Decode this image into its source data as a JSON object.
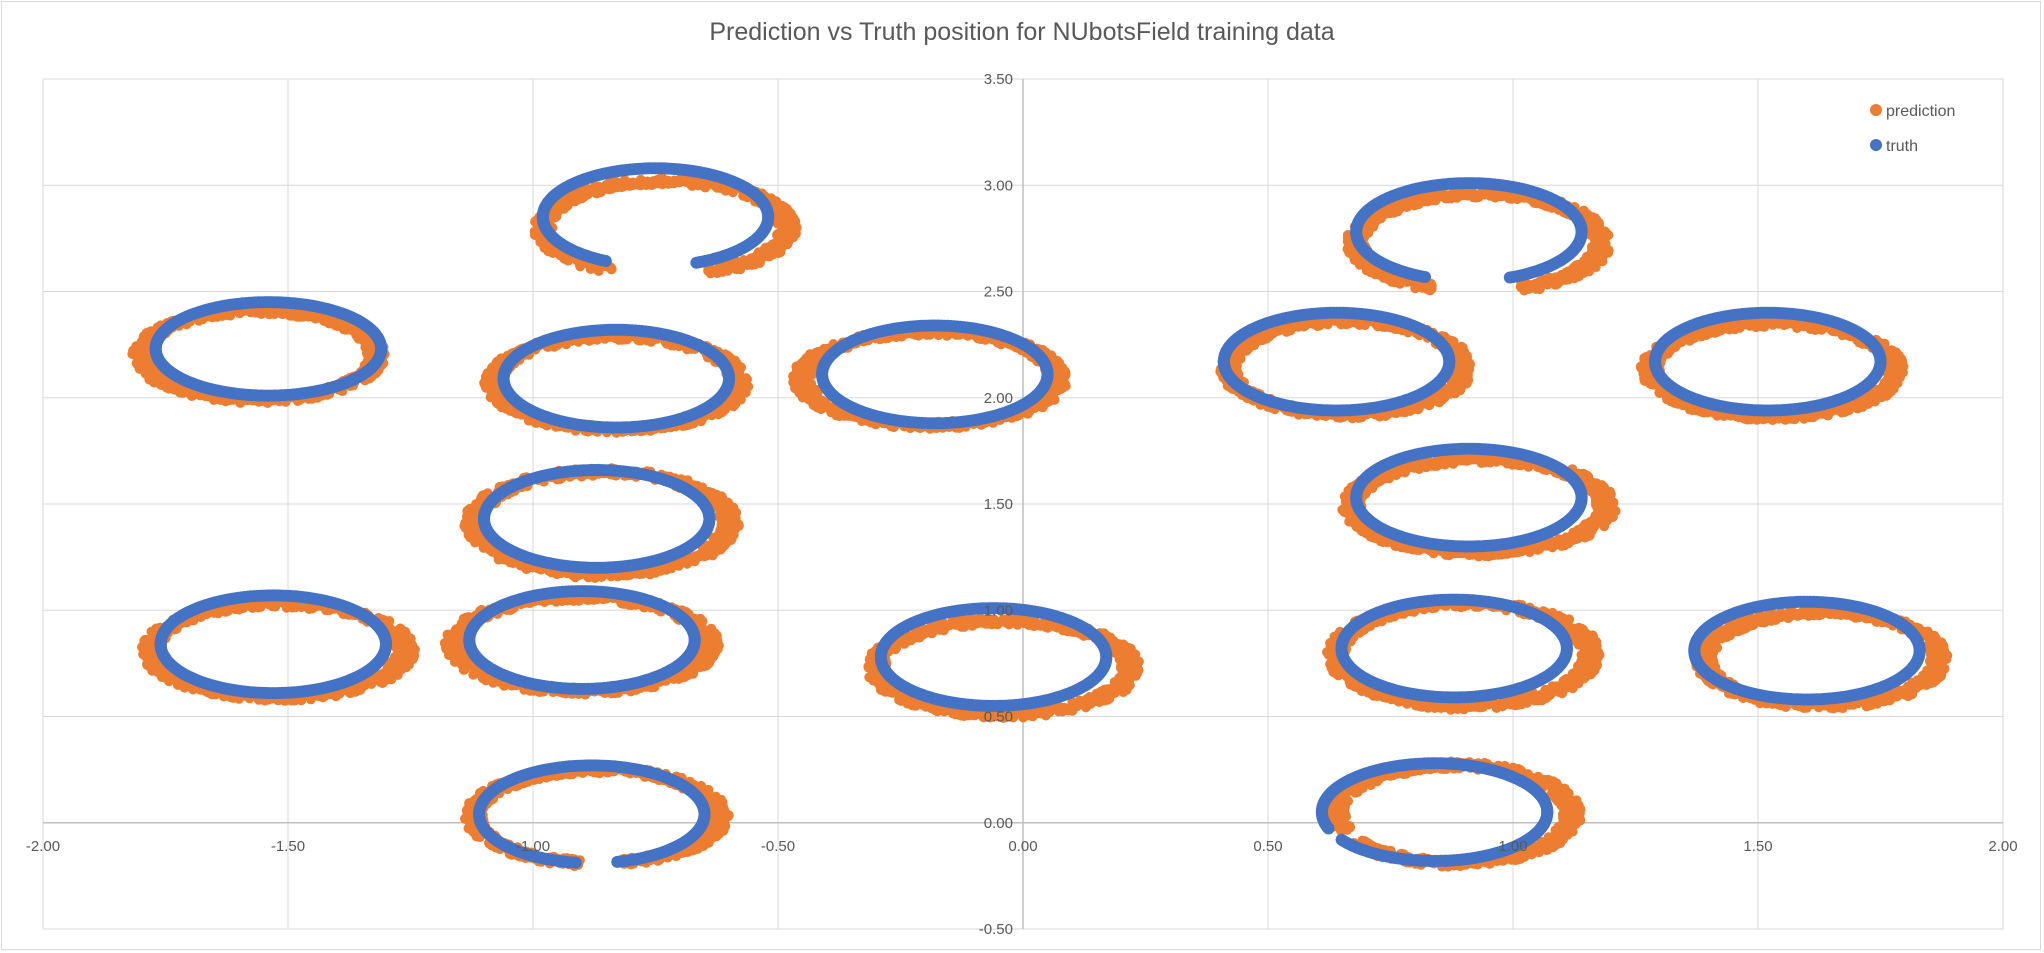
{
  "chart_data": {
    "type": "scatter",
    "title": "Prediction vs Truth position for NUbotsField training data",
    "xlabel": "",
    "ylabel": "",
    "xlim": [
      -2.0,
      2.0
    ],
    "ylim": [
      -0.5,
      3.5
    ],
    "x_ticks": [
      "-2.00",
      "-1.50",
      "-1.00",
      "-0.50",
      "0.00",
      "0.50",
      "1.00",
      "1.50",
      "2.00"
    ],
    "y_ticks": [
      "-0.50",
      "0.00",
      "0.50",
      "1.00",
      "1.50",
      "2.00",
      "2.50",
      "3.00",
      "3.50"
    ],
    "grid": true,
    "legend_position": "top-right",
    "series": [
      {
        "name": "prediction",
        "color": "#ed7d31"
      },
      {
        "name": "truth",
        "color": "#4472c4"
      }
    ],
    "circles": [
      {
        "truth_center": [
          -1.54,
          2.23
        ],
        "truth_radius": [
          0.23,
          0.22
        ],
        "pred_center": [
          -1.56,
          2.2
        ],
        "pred_radius": [
          0.24,
          0.21
        ],
        "gap": null
      },
      {
        "truth_center": [
          -0.75,
          2.85
        ],
        "truth_radius": [
          0.23,
          0.23
        ],
        "pred_center": [
          -0.73,
          2.8
        ],
        "pred_radius": [
          0.25,
          0.22
        ],
        "gap": [
          245,
          290
        ]
      },
      {
        "truth_center": [
          -0.83,
          2.09
        ],
        "truth_radius": [
          0.23,
          0.23
        ],
        "pred_center": [
          -0.83,
          2.07
        ],
        "pred_radius": [
          0.25,
          0.22
        ],
        "gap": null
      },
      {
        "truth_center": [
          -0.18,
          2.11
        ],
        "truth_radius": [
          0.23,
          0.23
        ],
        "pred_center": [
          -0.19,
          2.09
        ],
        "pred_radius": [
          0.26,
          0.22
        ],
        "gap": null
      },
      {
        "truth_center": [
          0.64,
          2.17
        ],
        "truth_radius": [
          0.23,
          0.23
        ],
        "pred_center": [
          0.66,
          2.14
        ],
        "pred_radius": [
          0.24,
          0.22
        ],
        "gap": null
      },
      {
        "truth_center": [
          0.91,
          2.78
        ],
        "truth_radius": [
          0.23,
          0.23
        ],
        "pred_center": [
          0.93,
          2.73
        ],
        "pred_radius": [
          0.25,
          0.23
        ],
        "gap": [
          248,
          290
        ]
      },
      {
        "truth_center": [
          1.52,
          2.17
        ],
        "truth_radius": [
          0.23,
          0.23
        ],
        "pred_center": [
          1.53,
          2.13
        ],
        "pred_radius": [
          0.25,
          0.22
        ],
        "gap": null
      },
      {
        "truth_center": [
          -0.87,
          1.43
        ],
        "truth_radius": [
          0.23,
          0.23
        ],
        "pred_center": [
          -0.86,
          1.41
        ],
        "pred_radius": [
          0.26,
          0.24
        ],
        "gap": null
      },
      {
        "truth_center": [
          0.91,
          1.53
        ],
        "truth_radius": [
          0.23,
          0.23
        ],
        "pred_center": [
          0.93,
          1.49
        ],
        "pred_radius": [
          0.26,
          0.22
        ],
        "gap": null
      },
      {
        "truth_center": [
          -1.53,
          0.84
        ],
        "truth_radius": [
          0.23,
          0.23
        ],
        "pred_center": [
          -1.52,
          0.81
        ],
        "pred_radius": [
          0.26,
          0.22
        ],
        "gap": null
      },
      {
        "truth_center": [
          -0.9,
          0.86
        ],
        "truth_radius": [
          0.23,
          0.23
        ],
        "pred_center": [
          -0.9,
          0.84
        ],
        "pred_radius": [
          0.26,
          0.22
        ],
        "gap": null
      },
      {
        "truth_center": [
          -0.06,
          0.78
        ],
        "truth_radius": [
          0.23,
          0.23
        ],
        "pred_center": [
          -0.04,
          0.73
        ],
        "pred_radius": [
          0.26,
          0.22
        ],
        "gap": null
      },
      {
        "truth_center": [
          0.88,
          0.82
        ],
        "truth_radius": [
          0.23,
          0.23
        ],
        "pred_center": [
          0.9,
          0.79
        ],
        "pred_radius": [
          0.26,
          0.24
        ],
        "gap": null
      },
      {
        "truth_center": [
          1.6,
          0.81
        ],
        "truth_radius": [
          0.23,
          0.23
        ],
        "pred_center": [
          1.63,
          0.77
        ],
        "pred_radius": [
          0.24,
          0.22
        ],
        "gap": null
      },
      {
        "truth_center": [
          -0.88,
          0.04
        ],
        "truth_radius": [
          0.23,
          0.23
        ],
        "pred_center": [
          -0.87,
          0.03
        ],
        "pred_radius": [
          0.25,
          0.22
        ],
        "gap": [
          262,
          282
        ]
      },
      {
        "truth_center": [
          0.84,
          0.05
        ],
        "truth_radius": [
          0.23,
          0.23
        ],
        "pred_center": [
          0.88,
          0.04
        ],
        "pred_radius": [
          0.24,
          0.23
        ],
        "gap": [
          200,
          214
        ]
      }
    ]
  }
}
